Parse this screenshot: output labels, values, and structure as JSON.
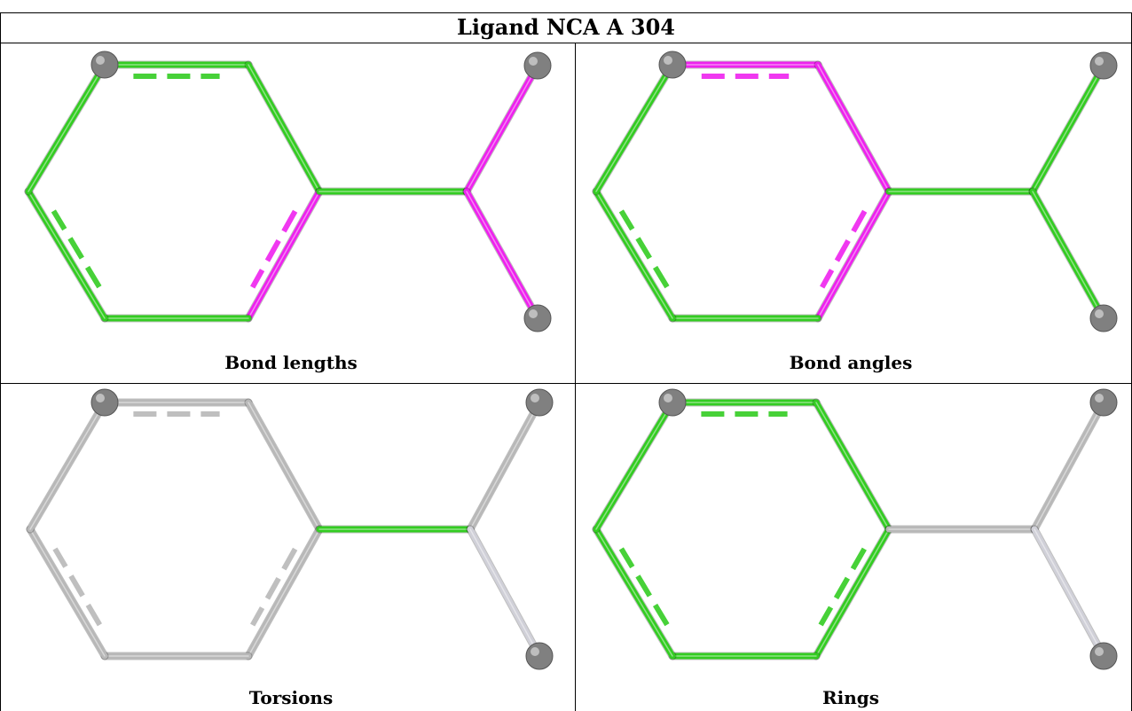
{
  "title": "Ligand NCA A 304",
  "panels": [
    {
      "caption": "Bond lengths",
      "colors": {
        "ring_c1_c2": "#33cc22",
        "ring_c2_c3": "#33cc22",
        "ring_c3_c4": "#ee22ee",
        "ring_c4_c5": "#33cc22",
        "ring_c5_c6": "#33cc22",
        "ring_c6_c1": "#33cc22",
        "exo": "#33cc22",
        "branch_upper": "#ee22ee",
        "branch_lower": "#ee22ee"
      }
    },
    {
      "caption": "Bond angles",
      "colors": {
        "ring_c1_c2": "#ee22ee",
        "ring_c2_c3": "#ee22ee",
        "ring_c3_c4": "#ee22ee",
        "ring_c4_c5": "#33cc22",
        "ring_c5_c6": "#33cc22",
        "ring_c6_c1": "#33cc22",
        "exo": "#33cc22",
        "branch_upper": "#33cc22",
        "branch_lower": "#33cc22"
      }
    },
    {
      "caption": "Torsions",
      "colors": {
        "ring_c1_c2": "#b8b8b8",
        "ring_c2_c3": "#b8b8b8",
        "ring_c3_c4": "#b8b8b8",
        "ring_c4_c5": "#b8b8b8",
        "ring_c5_c6": "#b8b8b8",
        "ring_c6_c1": "#b8b8b8",
        "exo": "#33cc22",
        "branch_upper": "#b8b8b8",
        "branch_lower": "#d0d0d8"
      }
    },
    {
      "caption": "Rings",
      "colors": {
        "ring_c1_c2": "#33cc22",
        "ring_c2_c3": "#33cc22",
        "ring_c3_c4": "#33cc22",
        "ring_c4_c5": "#33cc22",
        "ring_c5_c6": "#33cc22",
        "ring_c6_c1": "#33cc22",
        "exo": "#b8b8b8",
        "branch_upper": "#b8b8b8",
        "branch_lower": "#d0d0d8"
      }
    }
  ],
  "atom_color": "#808080"
}
